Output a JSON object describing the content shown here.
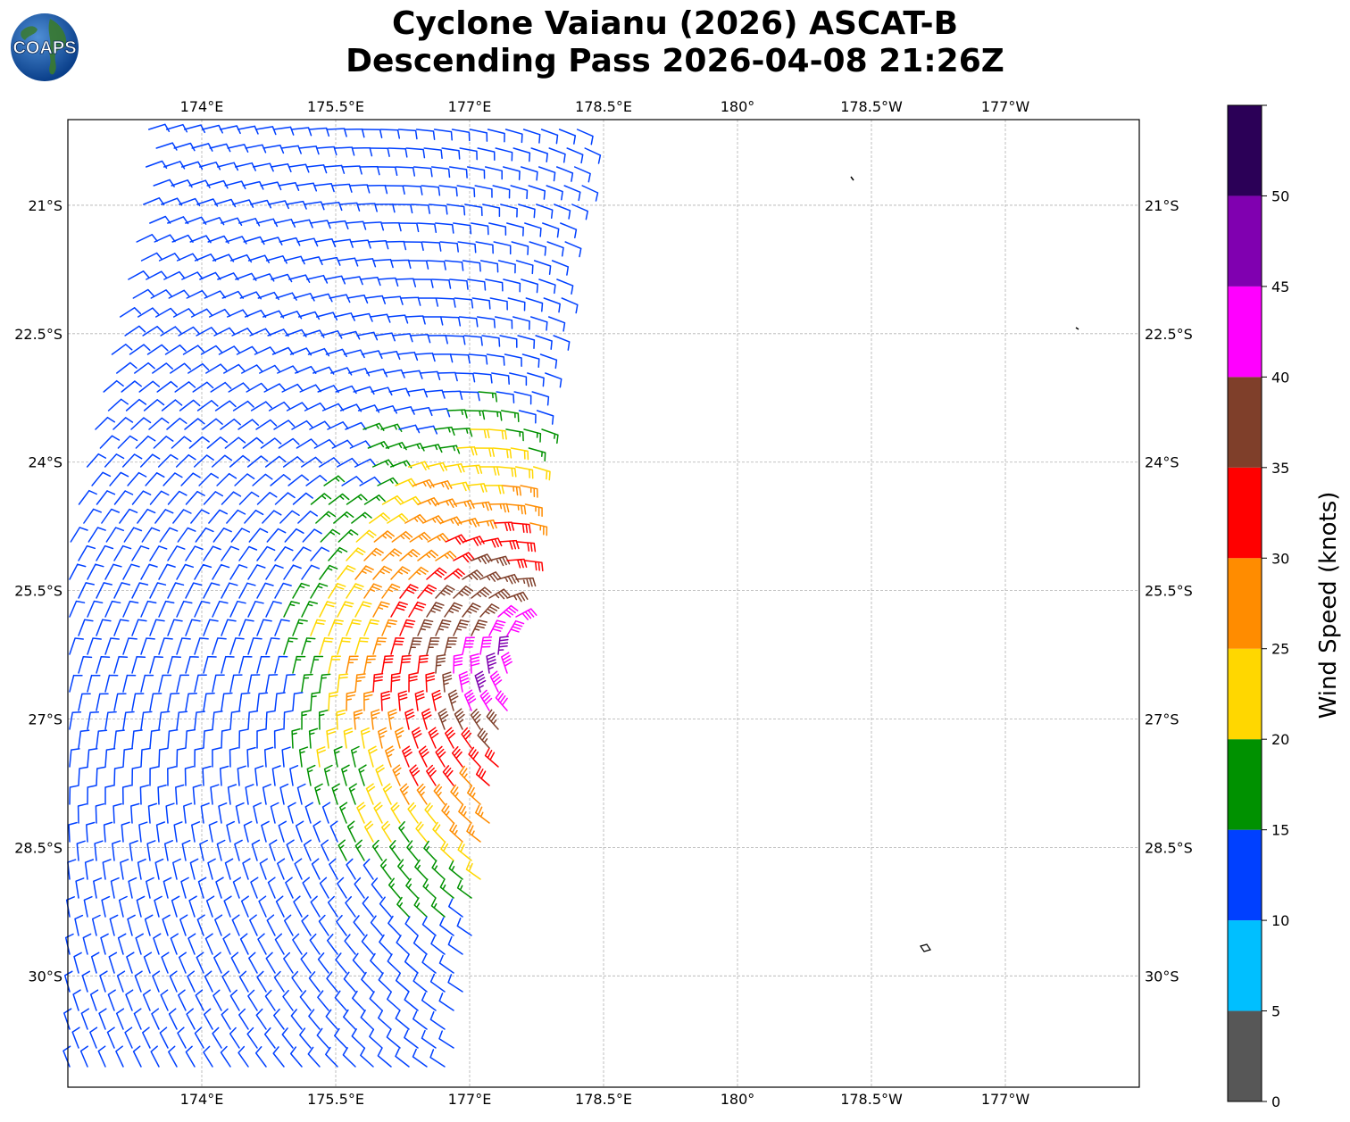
{
  "title": {
    "line1": "Cyclone Vaianu (2026) ASCAT-B",
    "line2": "Descending Pass 2026-04-08 21:26Z"
  },
  "logo": {
    "text": "COAPS",
    "icon": "globe-logo-icon"
  },
  "map": {
    "lon_ticks": [
      "174°E",
      "175.5°E",
      "177°E",
      "178.5°E",
      "180°",
      "178.5°W",
      "177°W"
    ],
    "lat_ticks": [
      "21°S",
      "22.5°S",
      "24°S",
      "25.5°S",
      "27°S",
      "28.5°S",
      "30°S"
    ],
    "lon_range_east": [
      172.5,
      184.5
    ],
    "lat_range": [
      -31.3,
      -20.0
    ],
    "gridlines": true
  },
  "colorbar": {
    "label": "Wind Speed (knots)",
    "ticks": [
      "0",
      "5",
      "10",
      "15",
      "20",
      "25",
      "30",
      "35",
      "40",
      "45",
      "50"
    ],
    "bins": [
      {
        "min": 0,
        "max": 5,
        "color": "#575757"
      },
      {
        "min": 5,
        "max": 10,
        "color": "#00bfff"
      },
      {
        "min": 10,
        "max": 15,
        "color": "#0040ff"
      },
      {
        "min": 15,
        "max": 20,
        "color": "#009100"
      },
      {
        "min": 20,
        "max": 25,
        "color": "#ffd700"
      },
      {
        "min": 25,
        "max": 30,
        "color": "#ff8c00"
      },
      {
        "min": 30,
        "max": 35,
        "color": "#ff0000"
      },
      {
        "min": 35,
        "max": 40,
        "color": "#7f3f2a"
      },
      {
        "min": 40,
        "max": 45,
        "color": "#ff00ff"
      },
      {
        "min": 45,
        "max": 50,
        "color": "#8000b0"
      },
      {
        "min": 50,
        "max": 55,
        "color": "#2b0057"
      }
    ]
  }
}
